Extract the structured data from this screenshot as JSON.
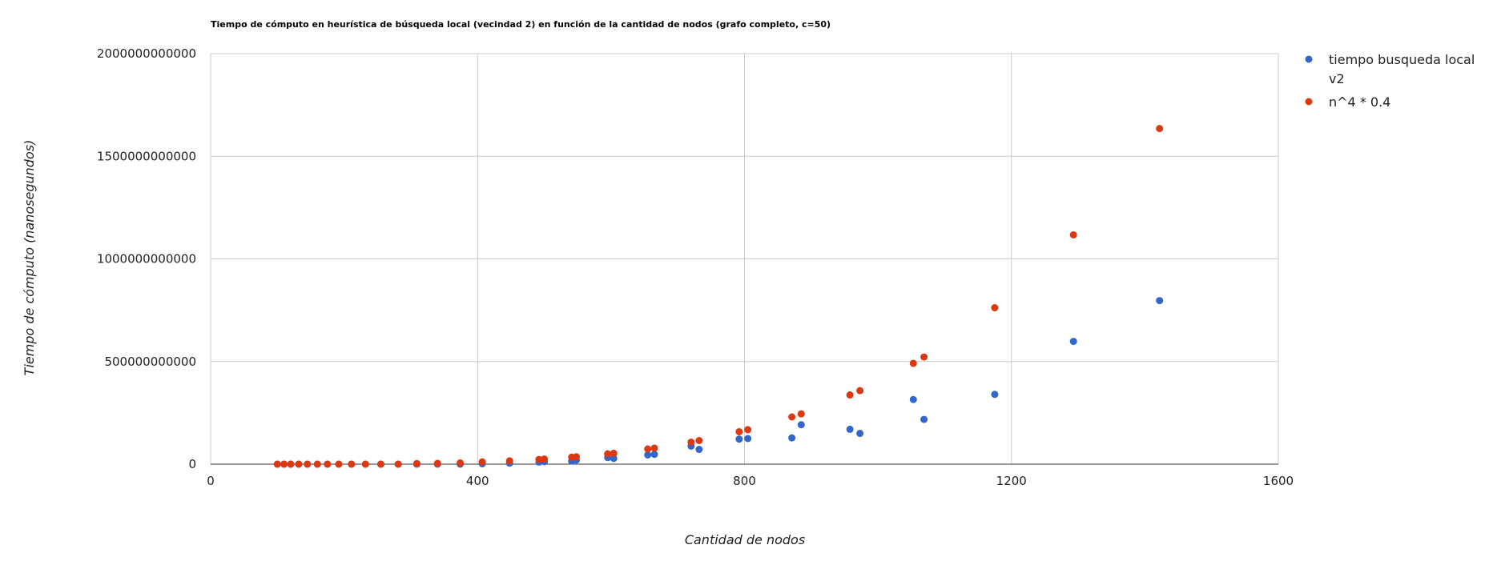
{
  "chart_data": {
    "type": "scatter",
    "title": "Tiempo de cómputo en heurística de búsqueda local (vecindad 2) en función de la cantidad de nodos (grafo completo, c=50)",
    "xlabel": "Cantidad de nodos",
    "ylabel": "Tiempo de cómputo (nanosegundos)",
    "xlim": [
      0,
      1600
    ],
    "ylim": [
      0,
      2000000000000
    ],
    "x_ticks": [
      0,
      400,
      800,
      1200,
      1600
    ],
    "x_tick_labels": [
      "0",
      "400",
      "800",
      "1200",
      "1600"
    ],
    "y_ticks": [
      0,
      500000000000,
      1000000000000,
      1500000000000,
      2000000000000
    ],
    "y_tick_labels": [
      "0",
      "500000000000",
      "1000000000000",
      "1500000000000",
      "2000000000000"
    ],
    "grid": true,
    "legend_position": "right",
    "series": [
      {
        "name_lines": [
          "tiempo busqueda local",
          "v2"
        ],
        "color": "#3366cc",
        "points": [
          [
            100,
            0
          ],
          [
            110,
            0
          ],
          [
            120,
            0
          ],
          [
            132,
            0
          ],
          [
            145,
            0
          ],
          [
            160,
            0
          ],
          [
            175,
            0
          ],
          [
            192,
            0
          ],
          [
            211,
            0
          ],
          [
            232,
            0
          ],
          [
            255,
            0
          ],
          [
            281,
            0
          ],
          [
            309,
            0
          ],
          [
            340,
            0
          ],
          [
            374,
            0
          ],
          [
            407,
            2000000000
          ],
          [
            448,
            5000000000
          ],
          [
            492,
            10000000000
          ],
          [
            500,
            12000000000
          ],
          [
            541,
            15000000000
          ],
          [
            548,
            20000000000
          ],
          [
            595,
            32000000000
          ],
          [
            604,
            28000000000
          ],
          [
            655,
            45000000000
          ],
          [
            665,
            48000000000
          ],
          [
            720,
            88000000000
          ],
          [
            732,
            72000000000
          ],
          [
            792,
            122000000000
          ],
          [
            805,
            125000000000
          ],
          [
            871,
            128000000000
          ],
          [
            885,
            192000000000
          ],
          [
            958,
            170000000000
          ],
          [
            973,
            150000000000
          ],
          [
            1053,
            315000000000
          ],
          [
            1069,
            218000000000
          ],
          [
            1175,
            340000000000
          ],
          [
            1293,
            598000000000
          ],
          [
            1422,
            797000000000
          ]
        ]
      },
      {
        "name": "n^4 * 0.4",
        "color": "#dc3912",
        "points": [
          [
            100,
            0
          ],
          [
            110,
            0
          ],
          [
            120,
            0
          ],
          [
            132,
            0
          ],
          [
            145,
            0
          ],
          [
            160,
            0
          ],
          [
            175,
            0
          ],
          [
            192,
            0
          ],
          [
            211,
            0
          ],
          [
            232,
            0
          ],
          [
            255,
            0
          ],
          [
            281,
            0
          ],
          [
            309,
            3000000000
          ],
          [
            340,
            4000000000
          ],
          [
            374,
            6000000000
          ],
          [
            407,
            11000000000
          ],
          [
            448,
            16000000000
          ],
          [
            492,
            23000000000
          ],
          [
            500,
            25000000000
          ],
          [
            541,
            34000000000
          ],
          [
            548,
            36000000000
          ],
          [
            595,
            50000000000
          ],
          [
            604,
            53000000000
          ],
          [
            655,
            74000000000
          ],
          [
            665,
            78000000000
          ],
          [
            720,
            107000000000
          ],
          [
            732,
            115000000000
          ],
          [
            792,
            158000000000
          ],
          [
            805,
            168000000000
          ],
          [
            871,
            230000000000
          ],
          [
            885,
            245000000000
          ],
          [
            958,
            337000000000
          ],
          [
            973,
            358000000000
          ],
          [
            1053,
            491000000000
          ],
          [
            1069,
            522000000000
          ],
          [
            1175,
            762000000000
          ],
          [
            1293,
            1117000000000
          ],
          [
            1422,
            1635000000000
          ]
        ]
      }
    ]
  }
}
